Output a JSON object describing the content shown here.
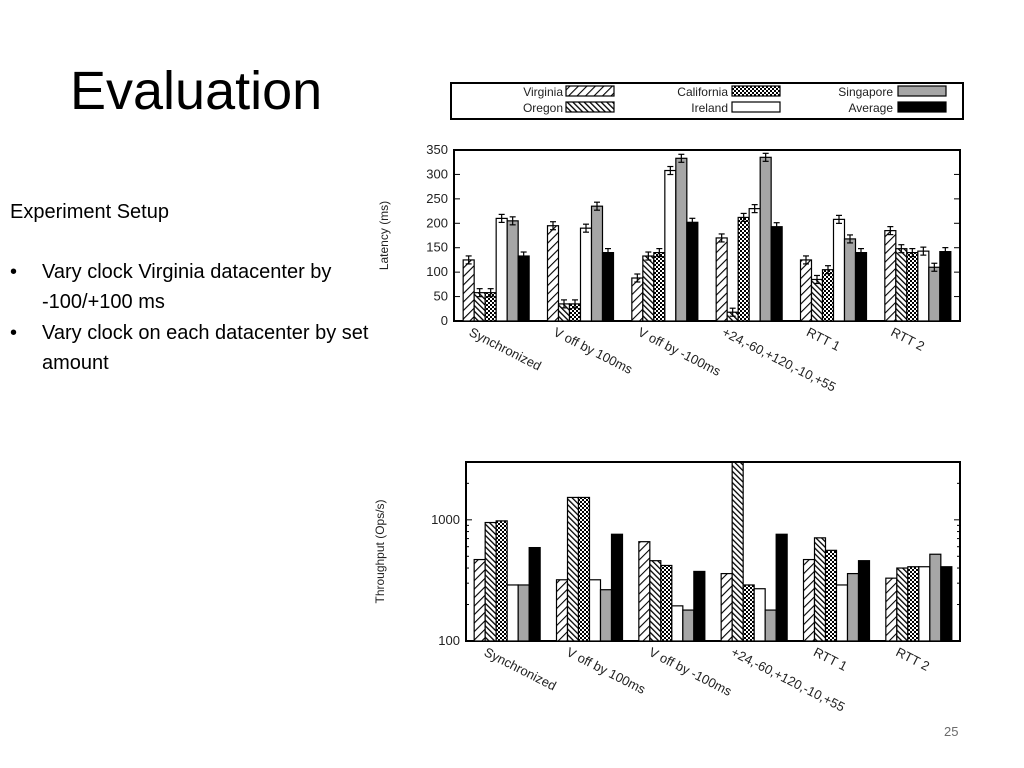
{
  "slide": {
    "title": "Evaluation",
    "setup_heading": "Experiment Setup",
    "bullets": [
      "Vary clock Virginia datacenter by -100/+100 ms",
      "Vary clock on each datacenter by set amount"
    ],
    "page_number": "25"
  },
  "colors": {
    "bar_stroke": "#000000",
    "singapore_fill": "#a6a6a6",
    "average_fill": "#000000",
    "ireland_fill": "#ffffff"
  },
  "legend": [
    {
      "name": "Virginia",
      "pattern": "diag-light"
    },
    {
      "name": "California",
      "pattern": "checker"
    },
    {
      "name": "Singapore",
      "pattern": "gray"
    },
    {
      "name": "Oregon",
      "pattern": "diag-dense"
    },
    {
      "name": "Ireland",
      "pattern": "white"
    },
    {
      "name": "Average",
      "pattern": "black"
    }
  ],
  "chart_data": [
    {
      "type": "bar",
      "ylabel": "Latency (ms)",
      "ylim": [
        0,
        350
      ],
      "yticks": [
        0,
        50,
        100,
        150,
        200,
        250,
        300,
        350
      ],
      "yscale": "linear",
      "error_bars": true,
      "categories": [
        "Synchronized",
        "V off by 100ms",
        "V off by -100ms",
        "+24,-60,+120,-10,+55",
        "RTT 1",
        "RTT 2"
      ],
      "series": [
        {
          "name": "Virginia",
          "values": [
            125,
            195,
            88,
            170,
            125,
            185
          ]
        },
        {
          "name": "Oregon",
          "values": [
            58,
            35,
            133,
            18,
            85,
            148
          ]
        },
        {
          "name": "California",
          "values": [
            58,
            35,
            140,
            212,
            105,
            140
          ]
        },
        {
          "name": "Ireland",
          "values": [
            210,
            190,
            308,
            230,
            208,
            143
          ]
        },
        {
          "name": "Singapore",
          "values": [
            205,
            235,
            333,
            335,
            168,
            110
          ]
        },
        {
          "name": "Average",
          "values": [
            133,
            140,
            202,
            193,
            140,
            142
          ]
        }
      ]
    },
    {
      "type": "bar",
      "ylabel": "Throughput (Ops/s)",
      "yscale": "log",
      "ylim": [
        100,
        3000
      ],
      "yticks": [
        100,
        1000
      ],
      "categories": [
        "Synchronized",
        "V off by 100ms",
        "V off by -100ms",
        "+24,-60,+120,-10,+55",
        "RTT 1",
        "RTT 2"
      ],
      "series": [
        {
          "name": "Virginia",
          "values": [
            470,
            320,
            660,
            360,
            470,
            330
          ]
        },
        {
          "name": "Oregon",
          "values": [
            950,
            1530,
            460,
            2980,
            710,
            400
          ]
        },
        {
          "name": "California",
          "values": [
            980,
            1530,
            420,
            290,
            560,
            410
          ]
        },
        {
          "name": "Ireland",
          "values": [
            290,
            320,
            195,
            270,
            290,
            410
          ]
        },
        {
          "name": "Singapore",
          "values": [
            290,
            265,
            180,
            180,
            360,
            520
          ]
        },
        {
          "name": "Average",
          "values": [
            590,
            760,
            375,
            760,
            460,
            410
          ]
        }
      ]
    }
  ]
}
